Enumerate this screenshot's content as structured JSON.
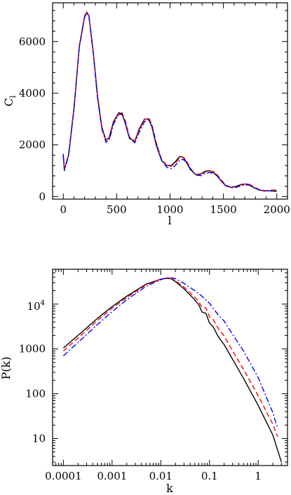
{
  "chart_data": [
    {
      "type": "line",
      "title": "",
      "xlabel": "l",
      "ylabel": "C",
      "ylabel_subscript": "l",
      "xlim": [
        -100,
        2100
      ],
      "ylim": [
        -100,
        7500
      ],
      "x_scale": "linear",
      "y_scale": "linear",
      "x_ticks": [
        0,
        500,
        1000,
        1500,
        2000
      ],
      "x_tick_labels": [
        "0",
        "500",
        "1000",
        "1500",
        "2000"
      ],
      "y_ticks": [
        0,
        2000,
        4000,
        6000
      ],
      "y_tick_labels": [
        "0",
        "2000",
        "4000",
        "6000"
      ],
      "grid": false,
      "legend": "none",
      "series": [
        {
          "color": "#000000",
          "dash": "solid",
          "x": [
            0,
            10,
            50,
            100,
            150,
            200,
            220,
            240,
            280,
            320,
            360,
            400,
            430,
            470,
            520,
            550,
            580,
            620,
            670,
            710,
            760,
            800,
            830,
            870,
            920,
            970,
            1010,
            1050,
            1090,
            1120,
            1150,
            1190,
            1240,
            1290,
            1330,
            1370,
            1410,
            1440,
            1470,
            1520,
            1570,
            1620,
            1670,
            1710,
            1740,
            1780,
            1830,
            1880,
            1930,
            1970,
            2000
          ],
          "y": [
            1650,
            1050,
            1600,
            3400,
            5800,
            6980,
            7130,
            7000,
            5600,
            3900,
            2700,
            2180,
            2280,
            2900,
            3250,
            3200,
            2850,
            2250,
            2150,
            2600,
            3000,
            3000,
            2700,
            2000,
            1400,
            1200,
            1200,
            1350,
            1550,
            1530,
            1350,
            1050,
            850,
            880,
            980,
            1000,
            920,
            800,
            640,
            420,
            350,
            400,
            470,
            490,
            460,
            350,
            260,
            220,
            220,
            210,
            200
          ]
        },
        {
          "color": "#ff0000",
          "dash": "dashed",
          "x": [
            0,
            10,
            50,
            100,
            150,
            200,
            220,
            240,
            280,
            320,
            360,
            400,
            430,
            470,
            520,
            550,
            580,
            620,
            670,
            710,
            760,
            800,
            830,
            870,
            920,
            970,
            1010,
            1050,
            1090,
            1120,
            1150,
            1190,
            1240,
            1290,
            1330,
            1370,
            1410,
            1440,
            1470,
            1520,
            1570,
            1620,
            1670,
            1710,
            1740,
            1780,
            1830,
            1880,
            1930,
            1970,
            2000
          ],
          "y": [
            1600,
            1050,
            1620,
            3450,
            5850,
            7000,
            7150,
            7020,
            5650,
            3950,
            2750,
            2150,
            2220,
            2850,
            3230,
            3250,
            2950,
            2300,
            2150,
            2550,
            2980,
            3050,
            2800,
            2100,
            1450,
            1200,
            1170,
            1300,
            1500,
            1540,
            1420,
            1100,
            850,
            850,
            950,
            1000,
            960,
            850,
            690,
            450,
            360,
            380,
            450,
            490,
            480,
            390,
            280,
            230,
            240,
            250,
            270
          ]
        },
        {
          "color": "#0000ff",
          "dash": "dashdot",
          "x": [
            0,
            10,
            50,
            100,
            150,
            200,
            220,
            240,
            280,
            320,
            360,
            400,
            430,
            470,
            520,
            550,
            580,
            620,
            670,
            710,
            760,
            800,
            830,
            870,
            920,
            970,
            1010,
            1050,
            1090,
            1120,
            1150,
            1190,
            1240,
            1290,
            1330,
            1370,
            1410,
            1440,
            1470,
            1520,
            1570,
            1620,
            1670,
            1710,
            1740,
            1780,
            1830,
            1880,
            1930,
            1970,
            2000
          ],
          "y": [
            1600,
            1000,
            1580,
            3380,
            5780,
            6950,
            7100,
            6970,
            5550,
            3850,
            2650,
            2100,
            2180,
            2800,
            3180,
            3180,
            2900,
            2250,
            2080,
            2480,
            2900,
            2970,
            2730,
            2050,
            1400,
            1130,
            1080,
            1200,
            1400,
            1440,
            1350,
            1080,
            830,
            810,
            890,
            930,
            890,
            800,
            650,
            430,
            340,
            360,
            420,
            450,
            440,
            360,
            260,
            210,
            220,
            240,
            260
          ]
        }
      ]
    },
    {
      "type": "line",
      "title": "",
      "xlabel": "k",
      "ylabel": "P(k)",
      "xlim": [
        6e-05,
        4
      ],
      "ylim": [
        2.5,
        60000
      ],
      "x_scale": "log",
      "y_scale": "log",
      "x_ticks": [
        0.0001,
        0.001,
        0.01,
        0.1,
        1
      ],
      "x_tick_labels": [
        "0.0001",
        "0.001",
        "0.01",
        "0.1",
        "1"
      ],
      "y_ticks": [
        10,
        100,
        1000
      ],
      "y_tick_labels": [
        "10",
        "100",
        "1000"
      ],
      "y_tick_10000_base": "10",
      "y_tick_10000_exponent": "4",
      "grid": false,
      "legend": "none",
      "series": [
        {
          "color": "#000000",
          "dash": "solid",
          "x": [
            0.0001,
            0.0002,
            0.0005,
            0.001,
            0.002,
            0.005,
            0.01,
            0.013,
            0.016,
            0.02,
            0.03,
            0.045,
            0.06,
            0.07,
            0.085,
            0.1,
            0.12,
            0.15,
            0.2,
            0.3,
            0.5,
            1,
            2,
            3
          ],
          "y": [
            1050,
            2000,
            4800,
            8800,
            15000,
            28000,
            36000,
            37500,
            37000,
            32000,
            22000,
            14000,
            9800,
            6700,
            6200,
            3800,
            3100,
            1900,
            1250,
            580,
            220,
            55,
            12,
            3
          ]
        },
        {
          "color": "#ff0000",
          "dash": "dashed",
          "x": [
            0.0001,
            0.0002,
            0.0005,
            0.001,
            0.002,
            0.005,
            0.01,
            0.013,
            0.016,
            0.02,
            0.03,
            0.045,
            0.06,
            0.07,
            0.085,
            0.1,
            0.12,
            0.15,
            0.2,
            0.3,
            0.5,
            1,
            2,
            2.5
          ],
          "y": [
            900,
            1750,
            4300,
            8100,
            14000,
            27000,
            36000,
            38000,
            37500,
            33500,
            24000,
            16000,
            11500,
            8500,
            8200,
            5200,
            4500,
            2900,
            1950,
            900,
            350,
            90,
            21,
            11
          ]
        },
        {
          "color": "#0000ff",
          "dash": "dashdot",
          "x": [
            0.0001,
            0.0002,
            0.0005,
            0.001,
            0.002,
            0.005,
            0.01,
            0.013,
            0.016,
            0.02,
            0.03,
            0.05,
            0.07,
            0.1,
            0.15,
            0.2,
            0.3,
            0.5,
            1,
            2,
            2.5
          ],
          "y": [
            700,
            1400,
            3500,
            6800,
            12500,
            25000,
            35000,
            38500,
            39000,
            37000,
            29000,
            20000,
            15000,
            10500,
            5800,
            4200,
            2100,
            900,
            230,
            38,
            17
          ]
        }
      ]
    }
  ]
}
